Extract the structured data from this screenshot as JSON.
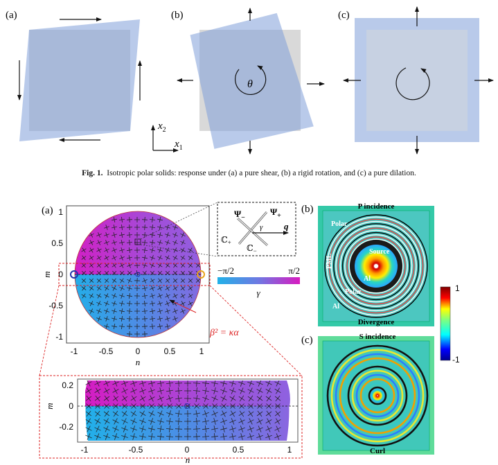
{
  "fig1": {
    "panels": [
      "(a)",
      "(b)",
      "(c)"
    ],
    "rotation_symbol": "θ",
    "axis_x2": "x",
    "axis_x2_sub": "2",
    "axis_x1": "x",
    "axis_x1_sub": "1",
    "caption_label": "Fig. 1.",
    "caption_text": "Isotropic polar solids: response under (a) a pure shear, (b) a rigid rotation, and (c) a pure dilation."
  },
  "fig2": {
    "panel_a": "(a)",
    "panel_b": "(b)",
    "panel_c": "(c)",
    "xlabel": "n",
    "ylabel": "m",
    "xticks": [
      "-1",
      "-0.5",
      "0",
      "0.5",
      "1"
    ],
    "yticks": [
      "1",
      "0.5",
      "0",
      "-0.5",
      "-1"
    ],
    "zoom_xticks": [
      "-1",
      "-0.5",
      "0",
      "0.5",
      "1"
    ],
    "zoom_yticks": [
      "0.2",
      "0",
      "-0.2"
    ],
    "inset": {
      "psi_minus": "Ψ",
      "psi_minus_sub": "−",
      "psi_plus": "Ψ",
      "psi_plus_sub": "+",
      "q": "q",
      "gamma": "γ",
      "c_plus": "ℂ",
      "c_plus_sub": "+",
      "c_minus": "ℂ",
      "c_minus_sub": "−"
    },
    "gamma_bar": {
      "min": "−π/2",
      "max": "π/2",
      "label": "γ"
    },
    "relation": "β² = κα",
    "sim_b": {
      "top": "P incidence",
      "bottom": "Divergence",
      "polar_outer": "Polar",
      "polar_inner": "Polar",
      "source": "Source",
      "al_inner": "Al",
      "al_outer": "Al",
      "pml": "PML"
    },
    "sim_c": {
      "top": "S incidence",
      "bottom": "Curl"
    },
    "colorbar": {
      "max": "1",
      "min": "-1"
    },
    "colors": {
      "magenta": "#d12fc4",
      "cyan": "#27aee8",
      "violet": "#8a63e0"
    }
  }
}
